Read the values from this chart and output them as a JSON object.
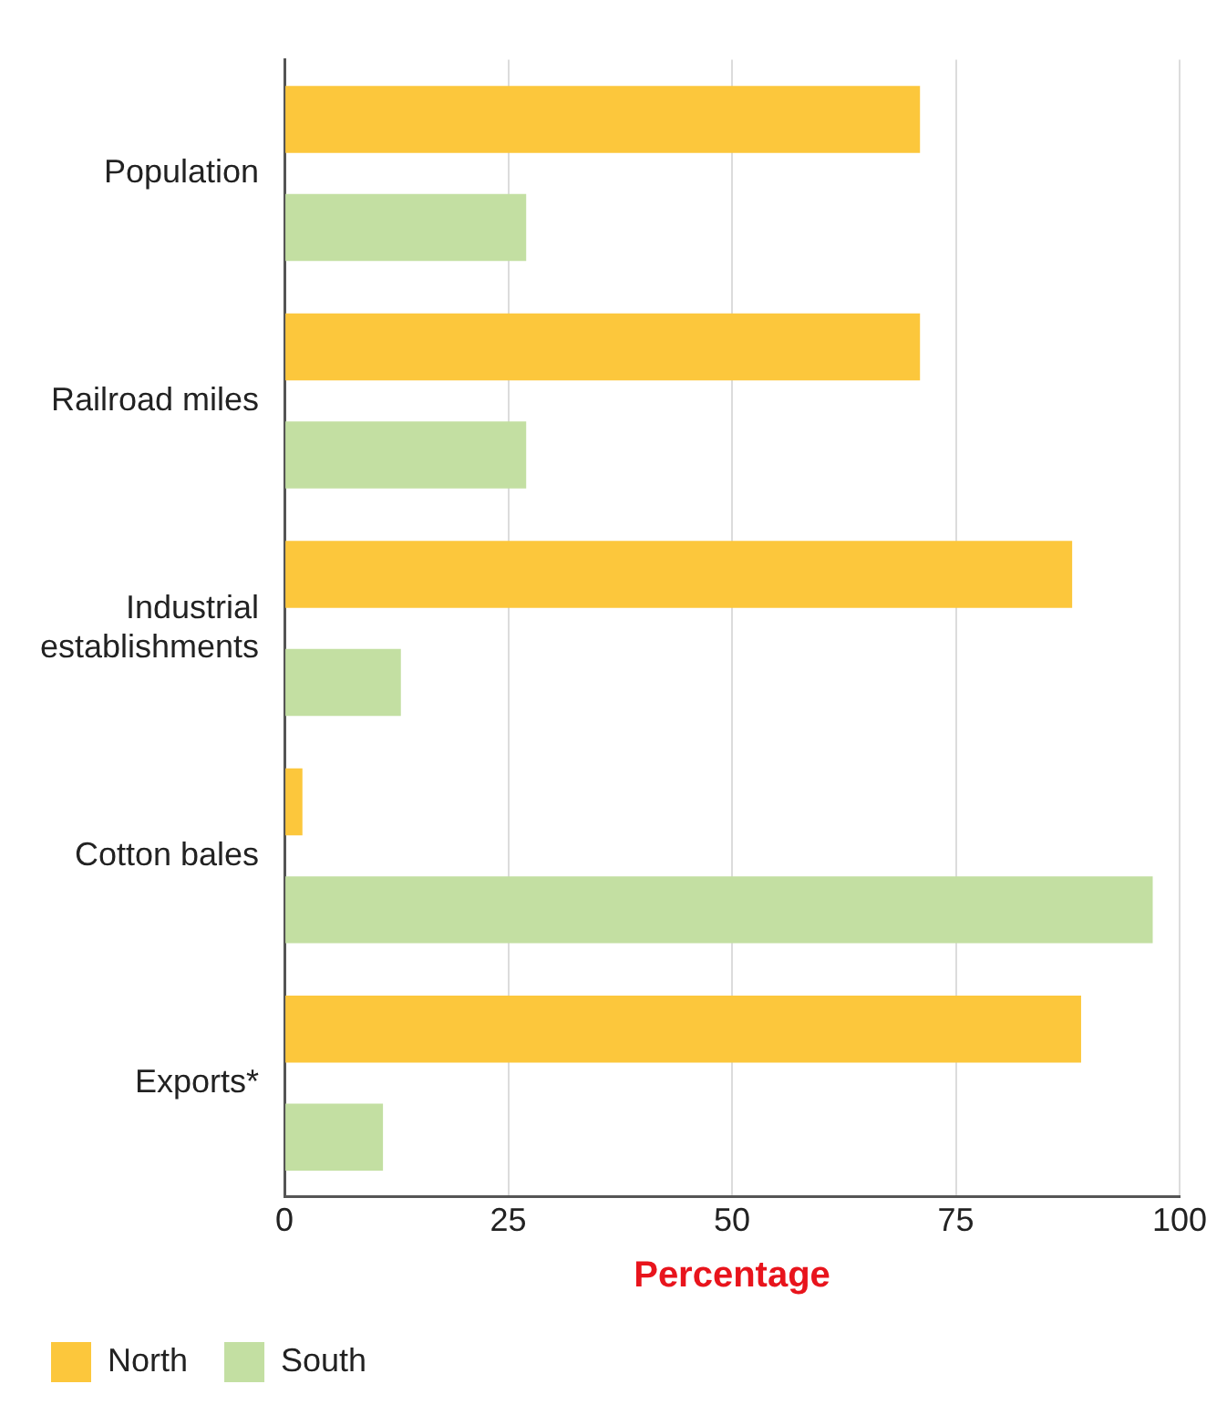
{
  "chart_data": {
    "type": "bar",
    "orientation": "horizontal",
    "xlabel": "Percentage",
    "categories": [
      "Population",
      "Railroad miles",
      "Industrial\nestablishments",
      "Cotton bales",
      "Exports*"
    ],
    "series": [
      {
        "name": "North",
        "color": "#fcc73c",
        "values": [
          71,
          71,
          88,
          2,
          89
        ]
      },
      {
        "name": "South",
        "color": "#c3dfa2",
        "values": [
          27,
          27,
          13,
          97,
          11
        ]
      }
    ],
    "xlim": [
      0,
      100
    ],
    "xticks": [
      0,
      25,
      50,
      75,
      100
    ],
    "grid": "x",
    "legend": "bottom"
  }
}
